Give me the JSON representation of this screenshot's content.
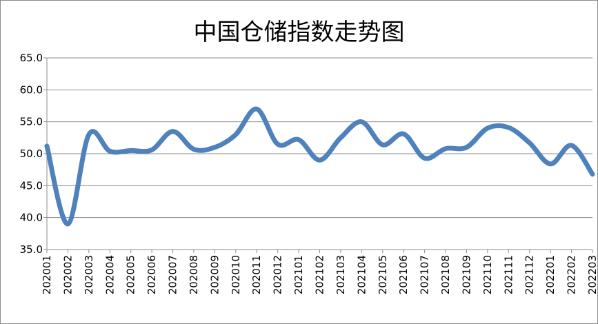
{
  "chart_data": {
    "type": "line",
    "title": "中国仓储指数走势图",
    "xlabel": "",
    "ylabel": "",
    "ylim": [
      35.0,
      65.0
    ],
    "y_ticks": [
      "35.0",
      "40.0",
      "45.0",
      "50.0",
      "55.0",
      "60.0",
      "65.0"
    ],
    "grid": true,
    "legend": "none",
    "categories": [
      "202001",
      "202002",
      "202003",
      "202004",
      "202005",
      "202006",
      "202007",
      "202008",
      "202009",
      "202010",
      "202011",
      "202012",
      "202101",
      "202102",
      "202103",
      "202104",
      "202105",
      "202106",
      "202107",
      "202108",
      "202109",
      "202110",
      "202111",
      "202112",
      "202201",
      "202202",
      "202203"
    ],
    "series": [
      {
        "color": "#4f81bd",
        "values": [
          51.2,
          39.0,
          53.0,
          50.4,
          50.5,
          50.6,
          53.5,
          50.7,
          51.0,
          53.0,
          57.0,
          51.5,
          52.2,
          49.0,
          52.5,
          55.0,
          51.4,
          53.1,
          49.3,
          50.8,
          51.0,
          54.0,
          54.1,
          51.7,
          48.4,
          51.3,
          46.8
        ]
      }
    ]
  }
}
